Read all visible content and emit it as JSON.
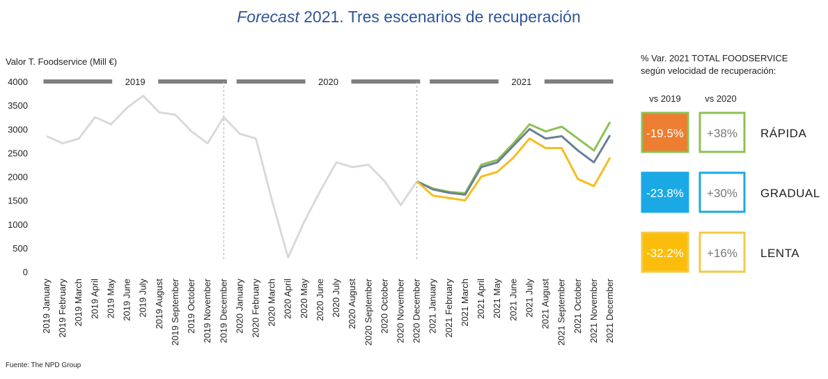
{
  "chart_data": {
    "type": "line",
    "title": [
      "Forecast",
      " 2021. Tres escenarios de recuperación"
    ],
    "ylabel": "Valor T. Foodservice (Mill €)",
    "source": "Fuente: The NPD Group",
    "period_labels": [
      "2019",
      "2020",
      "2021"
    ],
    "categories": [
      "2019 January",
      "2019 February",
      "2019 March",
      "2019 April",
      "2019 May",
      "2019 June",
      "2019 July",
      "2019 August",
      "2019 September",
      "2019 October",
      "2019 November",
      "2019 December",
      "2020 January",
      "2020 February",
      "2020 March",
      "2020 April",
      "2020 May",
      "2020 June",
      "2020 July",
      "2020 August",
      "2020 September",
      "2020 October",
      "2020 November",
      "2020 December",
      "2021 January",
      "2021 February",
      "2021 March",
      "2021 April",
      "2021 May",
      "2021 June",
      "2021 July",
      "2021 August",
      "2021 September",
      "2021 October",
      "2021 November",
      "2021 December"
    ],
    "ylim": [
      0,
      4000
    ],
    "yticks": [
      0,
      500,
      1000,
      1500,
      2000,
      2500,
      3000,
      3500,
      4000
    ],
    "series": [
      {
        "color": "#d9d9d9",
        "values": [
          2850,
          2700,
          2800,
          3250,
          3100,
          3450,
          3700,
          3350,
          3300,
          2950,
          2700,
          3250,
          2900,
          2800,
          1500,
          300,
          1050,
          1700,
          2300,
          2200,
          2250,
          1900,
          1400,
          1900,
          null,
          null,
          null,
          null,
          null,
          null,
          null,
          null,
          null,
          null,
          null,
          null
        ]
      },
      {
        "name": "RÁPIDA",
        "color": "#8cc152",
        "values": [
          null,
          null,
          null,
          null,
          null,
          null,
          null,
          null,
          null,
          null,
          null,
          null,
          null,
          null,
          null,
          null,
          null,
          null,
          null,
          null,
          null,
          null,
          null,
          1900,
          1750,
          1680,
          1650,
          2250,
          2350,
          2700,
          3100,
          2950,
          3050,
          2800,
          2550,
          3150
        ]
      },
      {
        "name": "GRADUAL",
        "color": "#6b7f95",
        "values": [
          null,
          null,
          null,
          null,
          null,
          null,
          null,
          null,
          null,
          null,
          null,
          null,
          null,
          null,
          null,
          null,
          null,
          null,
          null,
          null,
          null,
          null,
          null,
          1900,
          1730,
          1660,
          1620,
          2200,
          2300,
          2650,
          3000,
          2800,
          2850,
          2550,
          2300,
          2870
        ]
      },
      {
        "name": "LENTA",
        "color": "#f5bd1f",
        "values": [
          null,
          null,
          null,
          null,
          null,
          null,
          null,
          null,
          null,
          null,
          null,
          null,
          null,
          null,
          null,
          null,
          null,
          null,
          null,
          null,
          null,
          null,
          null,
          1900,
          1600,
          1550,
          1500,
          2000,
          2100,
          2400,
          2800,
          2600,
          2600,
          1950,
          1800,
          2400
        ]
      }
    ]
  },
  "panel": {
    "header": [
      "% Var. 2021 TOTAL FOODSERVICE",
      "según velocidad de recuperación:"
    ],
    "columns": [
      "vs 2019",
      "vs 2020"
    ],
    "rows": [
      {
        "vs2019": "-19.5%",
        "vs2020": "+38%",
        "fill": "#ed7d31",
        "border": "#8cc152"
      },
      {
        "vs2019": "-23.8%",
        "vs2020": "+30%",
        "fill": "#1ba9e6",
        "border": "#1ba9e6"
      },
      {
        "vs2019": "-32.2%",
        "vs2020": "+16%",
        "fill": "#fbbd0b",
        "border": "#f5c844"
      }
    ]
  }
}
